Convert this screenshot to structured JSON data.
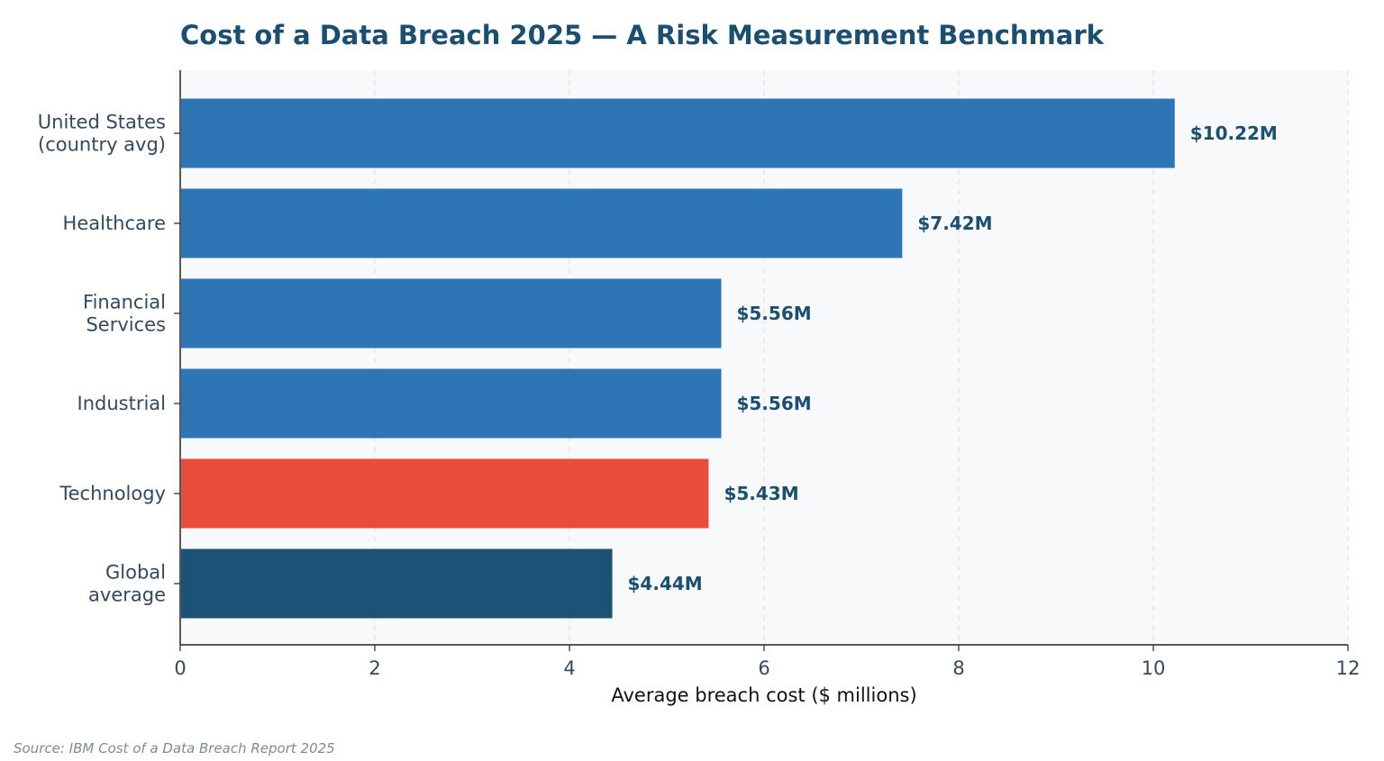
{
  "chart_data": {
    "type": "bar",
    "orientation": "horizontal",
    "title": "Cost of a Data Breach 2025 — A Risk Measurement Benchmark",
    "xlabel": "Average breach cost ($ millions)",
    "ylabel": "",
    "xlim": [
      0,
      12
    ],
    "xticks": [
      0,
      2,
      4,
      6,
      8,
      10,
      12
    ],
    "grid": "vertical dashed",
    "categories": [
      [
        "United States",
        "(country avg)"
      ],
      [
        "Healthcare"
      ],
      [
        "Financial",
        "Services"
      ],
      [
        "Industrial"
      ],
      [
        "Technology"
      ],
      [
        "Global",
        "average"
      ]
    ],
    "values": [
      10.22,
      7.42,
      5.56,
      5.56,
      5.43,
      4.44
    ],
    "value_labels": [
      "$10.22M",
      "$7.42M",
      "$5.56M",
      "$5.56M",
      "$5.43M",
      "$4.44M"
    ],
    "bar_colors": [
      "#2e75b6",
      "#2e75b6",
      "#2e75b6",
      "#2e75b6",
      "#e74c3c",
      "#1b5276"
    ],
    "source": "Source: IBM Cost of a Data Breach Report 2025"
  },
  "colors": {
    "title": "#1b4f72",
    "value_label": "#1b4f72",
    "category_label": "#34495e",
    "tick_label": "#34495e",
    "axis_label": "#111111",
    "source": "#7f8c8d",
    "plot_background": "#f8f9fb",
    "grid": "#e2e5ea",
    "axis_line": "#222222"
  }
}
